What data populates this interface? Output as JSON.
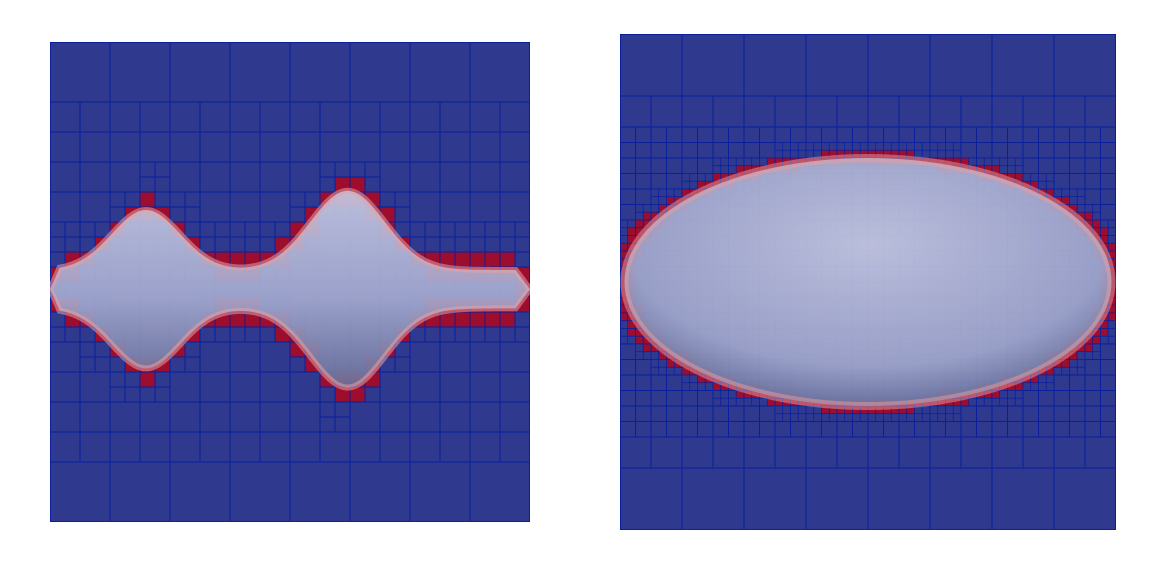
{
  "colors": {
    "background": "#ffffff",
    "cell_fill": "#2f3a8f",
    "cell_edge": "#0a1f9e",
    "interface_cell_fill": "#9c0d2e",
    "body_fill": "#a9afd0",
    "body_rim": "#e8a0a2"
  },
  "panels": [
    {
      "id": "left",
      "description_hidden": "",
      "base_grid": 8,
      "quarter_levels": [
        {
          "level": 1,
          "cells": [
            [
              0,
              2
            ],
            [
              1,
              2
            ],
            [
              2,
              2
            ],
            [
              3,
              2
            ],
            [
              4,
              2
            ],
            [
              5,
              2
            ],
            [
              6,
              2
            ],
            [
              7,
              2
            ],
            [
              0,
              3
            ],
            [
              1,
              3
            ],
            [
              2,
              3
            ],
            [
              3,
              3
            ],
            [
              4,
              3
            ],
            [
              5,
              3
            ],
            [
              6,
              3
            ],
            [
              7,
              3
            ],
            [
              0,
              4
            ],
            [
              1,
              4
            ],
            [
              2,
              4
            ],
            [
              3,
              4
            ],
            [
              4,
              4
            ],
            [
              5,
              4
            ],
            [
              6,
              4
            ],
            [
              7,
              4
            ],
            [
              0,
              5
            ],
            [
              1,
              5
            ],
            [
              2,
              5
            ],
            [
              3,
              5
            ],
            [
              4,
              5
            ],
            [
              5,
              5
            ],
            [
              6,
              5
            ],
            [
              7,
              5
            ]
          ]
        }
      ]
    },
    {
      "id": "right",
      "base_grid": 8
    }
  ]
}
